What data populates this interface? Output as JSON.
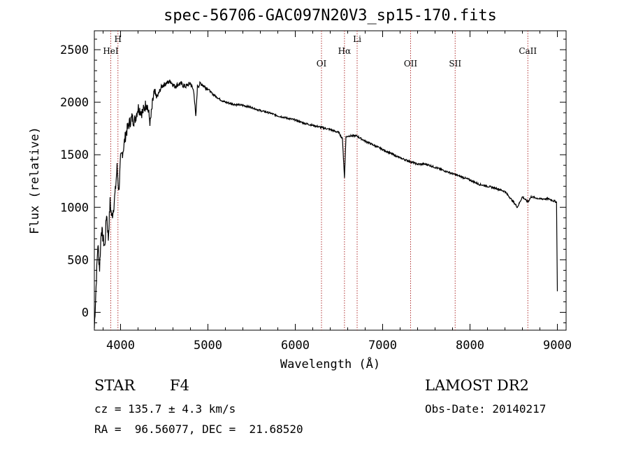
{
  "chart_data": {
    "type": "line",
    "title": "spec-56706-GAC097N20V3_sp15-170.fits",
    "xlabel": "Wavelength (Å)",
    "ylabel": "Flux (relative)",
    "xlim": [
      3700,
      9100
    ],
    "ylim": [
      -170,
      2680
    ],
    "x_ticks": [
      4000,
      5000,
      6000,
      7000,
      8000,
      9000
    ],
    "y_ticks": [
      0,
      500,
      1000,
      1500,
      2000,
      2500
    ],
    "grid": false,
    "series": [
      {
        "x": [
          3700,
          3720,
          3740,
          3760,
          3780,
          3800,
          3820,
          3840,
          3860,
          3880,
          3900,
          3920,
          3940,
          3960,
          3980,
          4000,
          4030,
          4060,
          4100,
          4130,
          4160,
          4200,
          4250,
          4300,
          4340,
          4380,
          4420,
          4470,
          4520,
          4570,
          4620,
          4680,
          4740,
          4800,
          4840,
          4861,
          4880,
          4920,
          4960,
          5000,
          5050,
          5100,
          5150,
          5200,
          5300,
          5400,
          5500,
          5600,
          5700,
          5800,
          5900,
          6000,
          6100,
          6200,
          6300,
          6400,
          6500,
          6540,
          6563,
          6580,
          6620,
          6700,
          6800,
          6900,
          7000,
          7100,
          7200,
          7300,
          7400,
          7500,
          7600,
          7700,
          7800,
          7900,
          8000,
          8100,
          8200,
          8300,
          8400,
          8498,
          8542,
          8600,
          8662,
          8700,
          8800,
          8900,
          8960,
          8990,
          9000
        ],
        "y": [
          -150,
          250,
          650,
          420,
          800,
          700,
          620,
          950,
          700,
          1050,
          900,
          1000,
          1150,
          1380,
          1150,
          1450,
          1550,
          1700,
          1800,
          1850,
          1820,
          1950,
          1900,
          2000,
          1800,
          2080,
          2050,
          2150,
          2180,
          2200,
          2150,
          2180,
          2150,
          2180,
          2100,
          1850,
          2150,
          2180,
          2150,
          2130,
          2080,
          2050,
          2020,
          2000,
          1980,
          1970,
          1950,
          1920,
          1900,
          1870,
          1850,
          1830,
          1800,
          1780,
          1760,
          1740,
          1710,
          1650,
          1280,
          1670,
          1680,
          1680,
          1630,
          1590,
          1550,
          1510,
          1470,
          1440,
          1410,
          1410,
          1380,
          1350,
          1320,
          1290,
          1260,
          1220,
          1200,
          1180,
          1150,
          1050,
          1000,
          1100,
          1050,
          1100,
          1080,
          1080,
          1060,
          1050,
          200
        ]
      }
    ],
    "lines": [
      {
        "label": "HeI",
        "x": 3888
      },
      {
        "label": "H",
        "x": 3970
      },
      {
        "label": "OI",
        "x": 6300
      },
      {
        "label": "Hα",
        "x": 6563
      },
      {
        "label": "Li",
        "x": 6708
      },
      {
        "label": "OII",
        "x": 7320
      },
      {
        "label": "SII",
        "x": 7830
      },
      {
        "label": "CaII",
        "x": 8662
      }
    ]
  },
  "info": {
    "object_type": "STAR",
    "subclass": "F4",
    "survey": "LAMOST DR2",
    "redshift": "cz = 135.7 ± 4.3 km/s",
    "obs_date": "Obs-Date: 20140217",
    "coords": "RA =  96.56077, DEC =  21.68520"
  }
}
